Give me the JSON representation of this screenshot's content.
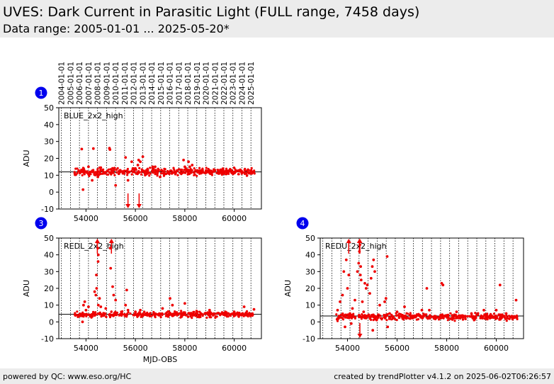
{
  "header": {
    "title": "UVES: Dark Current in Parasitic Light (FULL range, 7458 days)",
    "subtitle": "Data range: 2005-01-01 ... 2025-05-20*"
  },
  "footer": {
    "left": "powered by QC: www.eso.org/HC",
    "right": "created by trendPlotter v4.1.2 on 2025-06-02T06:26:57"
  },
  "colors": {
    "data": "#ee0000",
    "badge": "#0000ee",
    "reference": "#000000",
    "background": "#ececec"
  },
  "chart_data": [
    {
      "type": "scatter",
      "badge": "1",
      "label": "BLUE_2x2_high",
      "ylabel": "ADU",
      "xlabel": "",
      "xlim": [
        52900,
        61100
      ],
      "ylim": [
        -10,
        50
      ],
      "xticks": [
        54000,
        56000,
        58000,
        60000
      ],
      "yticks": [
        -10,
        0,
        10,
        20,
        30,
        40,
        50
      ],
      "show_xticklabels": true,
      "reference_line": 12,
      "year_ticks": [
        "2004-01-01",
        "2005-01-01",
        "2006-01-01",
        "2007-01-01",
        "2008-01-01",
        "2009-01-01",
        "2010-01-01",
        "2011-01-01",
        "2012-01-01",
        "2013-01-01",
        "2014-01-01",
        "2015-01-01",
        "2016-01-01",
        "2017-01-01",
        "2018-01-01",
        "2019-01-01",
        "2020-01-01",
        "2021-01-01",
        "2022-01-01",
        "2023-01-01",
        "2024-01-01",
        "2025-01-01"
      ],
      "year_mjd": [
        53005,
        53371,
        53736,
        54101,
        54466,
        54832,
        55197,
        55562,
        55927,
        56293,
        56658,
        57023,
        57388,
        57754,
        58119,
        58484,
        58849,
        59215,
        59580,
        59945,
        60310,
        60676
      ],
      "baseline": [
        53540,
        60850,
        12,
        1.2,
        470
      ],
      "points": [
        [
          53830,
          25.5
        ],
        [
          53880,
          1.5
        ],
        [
          53900,
          14
        ],
        [
          54100,
          15
        ],
        [
          54250,
          7
        ],
        [
          54300,
          25.8
        ],
        [
          54480,
          9
        ],
        [
          54600,
          14.5
        ],
        [
          54950,
          26
        ],
        [
          54970,
          25.2
        ],
        [
          55200,
          4
        ],
        [
          55550,
          11
        ],
        [
          55600,
          20.5
        ],
        [
          55700,
          7
        ],
        [
          55850,
          18
        ],
        [
          55900,
          14
        ],
        [
          56000,
          14
        ],
        [
          56100,
          16
        ],
        [
          56130,
          19
        ],
        [
          56200,
          18
        ],
        [
          56300,
          21
        ],
        [
          56500,
          13
        ],
        [
          56700,
          15
        ],
        [
          56800,
          15
        ],
        [
          57000,
          9
        ],
        [
          57950,
          19
        ],
        [
          58000,
          15
        ],
        [
          58150,
          18
        ],
        [
          58200,
          15
        ],
        [
          58300,
          16
        ]
      ],
      "down_arrows": [
        55700,
        56150
      ]
    },
    {
      "type": "scatter",
      "badge": "3",
      "label": "REDL_2x2_high",
      "ylabel": "ADU",
      "xlabel": "MJD-OBS",
      "xlim": [
        52900,
        61100
      ],
      "ylim": [
        -10,
        50
      ],
      "xticks": [
        54000,
        56000,
        58000,
        60000
      ],
      "yticks": [
        -10,
        0,
        10,
        20,
        30,
        40,
        50
      ],
      "show_xticklabels": true,
      "reference_line": 4.5,
      "year_ticks": [],
      "year_mjd": [
        53005,
        53371,
        53736,
        54101,
        54466,
        54832,
        55197,
        55562,
        55927,
        56293,
        56658,
        57023,
        57388,
        57754,
        58119,
        58484,
        58849,
        59215,
        59580,
        59945,
        60310,
        60676
      ],
      "baseline": [
        53540,
        60850,
        4.5,
        1.0,
        420
      ],
      "points": [
        [
          53860,
          0
        ],
        [
          53900,
          10
        ],
        [
          53950,
          12
        ],
        [
          54000,
          7
        ],
        [
          54100,
          9
        ],
        [
          54350,
          18
        ],
        [
          54400,
          16
        ],
        [
          54420,
          28
        ],
        [
          54430,
          20
        ],
        [
          54460,
          47.5
        ],
        [
          54480,
          44
        ],
        [
          54490,
          36
        ],
        [
          54500,
          40
        ],
        [
          54500,
          10
        ],
        [
          54550,
          14
        ],
        [
          54600,
          9
        ],
        [
          54800,
          8
        ],
        [
          54980,
          44
        ],
        [
          55000,
          32
        ],
        [
          55030,
          48
        ],
        [
          55080,
          21
        ],
        [
          55120,
          16
        ],
        [
          55200,
          13
        ],
        [
          55600,
          10
        ],
        [
          55650,
          19
        ],
        [
          55700,
          7
        ],
        [
          56000,
          6
        ],
        [
          56200,
          7
        ],
        [
          57100,
          8
        ],
        [
          57400,
          14
        ],
        [
          57500,
          10
        ],
        [
          58000,
          11
        ],
        [
          58500,
          6
        ],
        [
          59000,
          7
        ],
        [
          59500,
          5
        ],
        [
          60000,
          6
        ],
        [
          60400,
          9
        ],
        [
          60800,
          7.5
        ]
      ],
      "up_arrows": [
        54460,
        55030
      ],
      "down_arrows": []
    },
    {
      "type": "scatter",
      "badge": "4",
      "label": "REDU_2x2_high",
      "ylabel": "ADU",
      "xlabel": "",
      "xlim": [
        52900,
        61100
      ],
      "ylim": [
        -10,
        50
      ],
      "xticks": [
        54000,
        56000,
        58000,
        60000
      ],
      "yticks": [
        -10,
        0,
        10,
        20,
        30,
        40,
        50
      ],
      "show_xticklabels": true,
      "reference_line": 3.5,
      "year_ticks": [],
      "year_mjd": [
        53005,
        53371,
        53736,
        54101,
        54466,
        54832,
        55197,
        55562,
        55927,
        56293,
        56658,
        57023,
        57388,
        57754,
        58119,
        58484,
        58849,
        59215,
        59580,
        59945,
        60310,
        60676
      ],
      "baseline": [
        53540,
        60850,
        3.0,
        1.2,
        430
      ],
      "points": [
        [
          53600,
          7
        ],
        [
          53700,
          12
        ],
        [
          53800,
          16
        ],
        [
          53850,
          30
        ],
        [
          53900,
          -3
        ],
        [
          53950,
          37
        ],
        [
          54000,
          20
        ],
        [
          54050,
          28
        ],
        [
          54100,
          5
        ],
        [
          54150,
          -1
        ],
        [
          54200,
          8
        ],
        [
          54300,
          13
        ],
        [
          54400,
          30
        ],
        [
          54450,
          35
        ],
        [
          54480,
          42
        ],
        [
          54500,
          46
        ],
        [
          54520,
          28
        ],
        [
          54530,
          33
        ],
        [
          54550,
          25
        ],
        [
          54600,
          12
        ],
        [
          54650,
          6
        ],
        [
          54700,
          23
        ],
        [
          54750,
          20
        ],
        [
          54800,
          22
        ],
        [
          54900,
          17
        ],
        [
          54950,
          26
        ],
        [
          55000,
          33
        ],
        [
          55020,
          -5
        ],
        [
          55050,
          37
        ],
        [
          55100,
          30
        ],
        [
          55150,
          3
        ],
        [
          55300,
          10
        ],
        [
          55500,
          12
        ],
        [
          55550,
          14
        ],
        [
          55600,
          39
        ],
        [
          55620,
          -3
        ],
        [
          55700,
          5
        ],
        [
          56000,
          6
        ],
        [
          56300,
          9
        ],
        [
          57000,
          7
        ],
        [
          57200,
          20
        ],
        [
          57300,
          7
        ],
        [
          57800,
          23
        ],
        [
          57850,
          22
        ],
        [
          58400,
          6
        ],
        [
          59000,
          5
        ],
        [
          59500,
          7
        ],
        [
          60000,
          7
        ],
        [
          60150,
          22
        ],
        [
          60400,
          5
        ],
        [
          60800,
          13
        ]
      ],
      "up_arrows": [
        54050,
        54480,
        54500
      ],
      "down_arrows": [
        54500
      ]
    }
  ]
}
